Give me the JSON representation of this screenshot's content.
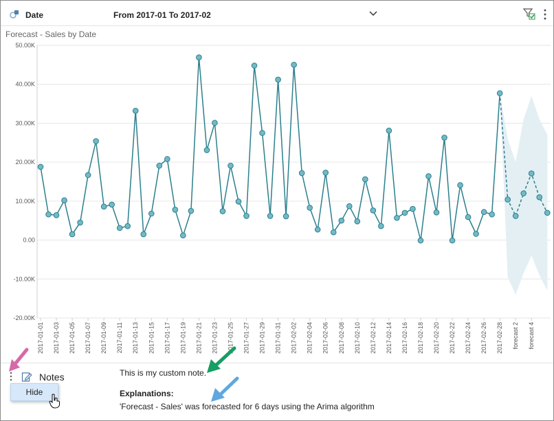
{
  "header": {
    "date_label": "Date",
    "range_label": "From 2017-01 To 2017-02",
    "icons": [
      "date-dimension-icon",
      "chevron-down-icon",
      "filter-applied-icon",
      "more-options-icon"
    ]
  },
  "chart_title": "Forecast - Sales by Date",
  "chart_data": {
    "type": "line",
    "title": "Forecast - Sales by Date",
    "xlabel": "",
    "ylabel": "",
    "ylim": [
      -20000,
      50000
    ],
    "y_ticks": [
      "50.00K",
      "40.00K",
      "30.00K",
      "20.00K",
      "10.00K",
      "0.00",
      "-10.00K",
      "-20.00K"
    ],
    "y_tick_values": [
      50000,
      40000,
      30000,
      20000,
      10000,
      0,
      -10000,
      -20000
    ],
    "x_tick_labels": [
      "2017-01-01",
      "2017-01-03",
      "2017-01-05",
      "2017-01-07",
      "2017-01-09",
      "2017-01-11",
      "2017-01-13",
      "2017-01-15",
      "2017-01-17",
      "2017-01-19",
      "2017-01-21",
      "2017-01-23",
      "2017-01-25",
      "2017-01-27",
      "2017-01-29",
      "2017-01-31",
      "2017-02-02",
      "2017-02-04",
      "2017-02-06",
      "2017-02-08",
      "2017-02-10",
      "2017-02-12",
      "2017-02-14",
      "2017-02-16",
      "2017-02-18",
      "2017-02-20",
      "2017-02-22",
      "2017-02-24",
      "2017-02-26",
      "2017-02-28",
      "forecast 2",
      "forecast 4"
    ],
    "grid": true,
    "series": [
      {
        "name": "Sales",
        "values": [
          18800,
          6600,
          6400,
          10200,
          1500,
          4500,
          16700,
          25400,
          8600,
          9100,
          3100,
          3600,
          33200,
          1500,
          6800,
          19100,
          20800,
          7800,
          1200,
          7500,
          46900,
          23100,
          30100,
          7400,
          19100,
          9900,
          6200,
          44800,
          27500,
          6200,
          41200,
          6100,
          45000,
          17200,
          8300,
          2700,
          17300,
          2000,
          5000,
          8700,
          4800,
          15600,
          7600,
          3600,
          28100,
          5700,
          7000,
          8000,
          -100,
          16400,
          7100,
          26300,
          -100,
          14100,
          5900,
          1600,
          7200,
          6600,
          37700
        ]
      },
      {
        "name": "Forecast - Sales",
        "style": "dashed",
        "values": [
          10400,
          6200,
          12000,
          17100,
          11000,
          7000
        ],
        "lower": [
          -9500,
          -14000,
          -8500,
          -4000,
          -9000,
          -13000
        ],
        "upper": [
          26000,
          20000,
          31000,
          37000,
          31000,
          27000
        ]
      }
    ]
  },
  "notes": {
    "label": "Notes",
    "custom_note": "This is my custom note.",
    "explanations_title": "Explanations:",
    "explanation_text": "'Forecast - Sales' was forecasted for 6 days using the Arima algorithm",
    "menu_hide": "Hide"
  },
  "colors": {
    "line": "#2a7f8c",
    "marker_fill": "#74b9c7",
    "band": "#e3eff3",
    "grid": "#e6e6e6",
    "arrow_pink": "#d66aa8",
    "arrow_green": "#169e63",
    "arrow_blue": "#5ea8df",
    "menu_bg": "#d7e8fa"
  }
}
